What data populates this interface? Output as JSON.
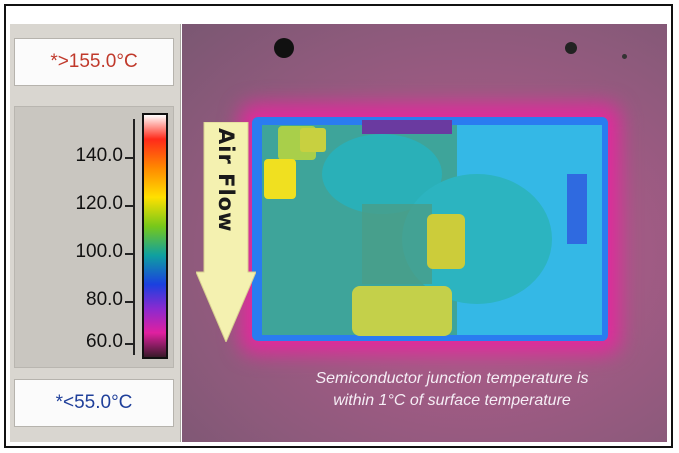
{
  "scale": {
    "max_limit": "*>155.0°C",
    "min_limit": "*<55.0°C",
    "ticks": [
      "140.0",
      "120.0",
      "100.0",
      "80.0",
      "60.0"
    ]
  },
  "image": {
    "airflow_label": "Air Flow",
    "caption_line1": "Semiconductor junction temperature is",
    "caption_line2": "within 1°C of surface temperature"
  },
  "colors": {
    "max_limit_text": "#c0392b",
    "min_limit_text": "#1f3f9a",
    "arrow_fill": "#f4f1b0"
  }
}
